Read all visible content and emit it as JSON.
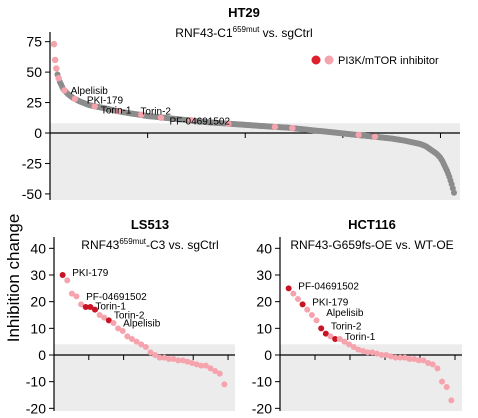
{
  "ylabel": "Inhibition change",
  "legend": {
    "label": "PI3K/mTOR inhibitor",
    "dot_colors": [
      "#e01f2c",
      "#f5a3ad"
    ]
  },
  "colors": {
    "other": "#8c8c8c",
    "pi3k_dark": "#c81424",
    "pi3k_light": "#f5a3ad",
    "bg_band": "#ececec"
  },
  "chart_data": [
    {
      "type": "scatter",
      "title": "HT29",
      "subtitle_main": "RNF43-C1",
      "subtitle_sup": "659mut",
      "subtitle_end": " vs. sgCtrl",
      "ylim": [
        -55,
        78
      ],
      "yticks": [
        75,
        50,
        25,
        0,
        -25,
        -50
      ],
      "background_band": [
        -55,
        8
      ],
      "ranked_profile": [
        [
          0,
          73
        ],
        [
          1,
          60
        ],
        [
          2,
          53
        ],
        [
          3,
          48
        ],
        [
          5,
          42
        ],
        [
          8,
          36
        ],
        [
          12,
          32
        ],
        [
          16,
          29
        ],
        [
          22,
          26
        ],
        [
          30,
          23
        ],
        [
          40,
          21
        ],
        [
          50,
          19
        ],
        [
          60,
          17
        ],
        [
          70,
          15.5
        ],
        [
          80,
          14
        ],
        [
          90,
          13
        ],
        [
          100,
          12
        ],
        [
          115,
          10.5
        ],
        [
          130,
          9
        ],
        [
          145,
          8
        ],
        [
          160,
          7
        ],
        [
          175,
          6
        ],
        [
          190,
          5
        ],
        [
          200,
          4.5
        ],
        [
          210,
          3.5
        ],
        [
          220,
          2.5
        ],
        [
          230,
          1.5
        ],
        [
          240,
          0.5
        ],
        [
          250,
          -0.5
        ],
        [
          260,
          -1.5
        ],
        [
          270,
          -2.5
        ],
        [
          280,
          -3.5
        ],
        [
          290,
          -4.5
        ],
        [
          300,
          -6
        ],
        [
          310,
          -8
        ],
        [
          315,
          -9
        ],
        [
          320,
          -11
        ],
        [
          323,
          -13
        ],
        [
          326,
          -15
        ],
        [
          329,
          -17
        ],
        [
          332,
          -20
        ],
        [
          334,
          -23
        ],
        [
          336,
          -27
        ],
        [
          338,
          -31
        ],
        [
          340,
          -36
        ],
        [
          342,
          -42
        ],
        [
          344,
          -49
        ]
      ],
      "n_points": 345,
      "pi3k_points": [
        {
          "x": 0,
          "y": 73,
          "dark": false
        },
        {
          "x": 1,
          "y": 60,
          "dark": false
        },
        {
          "x": 2,
          "y": 53,
          "dark": false
        },
        {
          "x": 4,
          "y": 45,
          "dark": false
        },
        {
          "x": 9,
          "y": 35,
          "dark": false
        },
        {
          "x": 18,
          "y": 28,
          "dark": false
        },
        {
          "x": 35,
          "y": 22,
          "dark": false
        },
        {
          "x": 55,
          "y": 18,
          "dark": false
        },
        {
          "x": 75,
          "y": 15,
          "dark": false
        },
        {
          "x": 92,
          "y": 12.5,
          "dark": false
        },
        {
          "x": 118,
          "y": 10.5,
          "dark": false
        },
        {
          "x": 150,
          "y": 7.5,
          "dark": false
        },
        {
          "x": 190,
          "y": 5,
          "dark": false
        },
        {
          "x": 205,
          "y": 4,
          "dark": false
        },
        {
          "x": 262,
          "y": -1.5,
          "dark": false
        },
        {
          "x": 276,
          "y": -3,
          "dark": false
        }
      ],
      "annotations": [
        {
          "text": "Alpelisib",
          "x": 10,
          "y": 33
        },
        {
          "text": "PKI-179",
          "x": 24,
          "y": 25
        },
        {
          "text": "Torin-1",
          "x": 36,
          "y": 17
        },
        {
          "text": "Torin-2",
          "x": 70,
          "y": 16
        },
        {
          "text": "PF-04691502",
          "x": 95,
          "y": 8
        }
      ]
    },
    {
      "type": "scatter",
      "title": "LS513",
      "subtitle_main": "RNF43",
      "subtitle_sup": "659mut",
      "subtitle_end": "-C3 vs. sgCtrl",
      "ylim": [
        -21,
        42
      ],
      "yticks": [
        40,
        30,
        20,
        10,
        0,
        -10,
        -20
      ],
      "background_band": [
        -21,
        4
      ],
      "n_points": 38,
      "points": [
        {
          "x": 1,
          "y": 30,
          "c": "dark"
        },
        {
          "x": 2,
          "y": 28,
          "c": "light"
        },
        {
          "x": 3,
          "y": 23,
          "c": "light"
        },
        {
          "x": 4,
          "y": 22,
          "c": "light"
        },
        {
          "x": 5,
          "y": 19,
          "c": "light"
        },
        {
          "x": 6,
          "y": 18,
          "c": "dark"
        },
        {
          "x": 7,
          "y": 18,
          "c": "dark"
        },
        {
          "x": 8,
          "y": 17,
          "c": "dark"
        },
        {
          "x": 9,
          "y": 15,
          "c": "light"
        },
        {
          "x": 10,
          "y": 14,
          "c": "light"
        },
        {
          "x": 11,
          "y": 13,
          "c": "dark"
        },
        {
          "x": 12,
          "y": 12,
          "c": "light"
        },
        {
          "x": 13,
          "y": 10,
          "c": "light"
        },
        {
          "x": 14,
          "y": 9,
          "c": "light"
        },
        {
          "x": 15,
          "y": 7,
          "c": "light"
        },
        {
          "x": 16,
          "y": 6,
          "c": "light"
        },
        {
          "x": 17,
          "y": 5,
          "c": "light"
        },
        {
          "x": 18,
          "y": 4,
          "c": "light"
        },
        {
          "x": 19,
          "y": 3,
          "c": "light"
        },
        {
          "x": 20,
          "y": 1,
          "c": "light"
        },
        {
          "x": 21,
          "y": 0,
          "c": "light"
        },
        {
          "x": 22,
          "y": -1,
          "c": "light"
        },
        {
          "x": 23,
          "y": -1,
          "c": "light"
        },
        {
          "x": 24,
          "y": -1.5,
          "c": "light"
        },
        {
          "x": 25,
          "y": -1.5,
          "c": "light"
        },
        {
          "x": 26,
          "y": -2,
          "c": "light"
        },
        {
          "x": 27,
          "y": -2,
          "c": "light"
        },
        {
          "x": 28,
          "y": -2.5,
          "c": "light"
        },
        {
          "x": 29,
          "y": -3,
          "c": "light"
        },
        {
          "x": 30,
          "y": -3.5,
          "c": "light"
        },
        {
          "x": 31,
          "y": -4,
          "c": "light"
        },
        {
          "x": 32,
          "y": -4,
          "c": "light"
        },
        {
          "x": 33,
          "y": -5,
          "c": "light"
        },
        {
          "x": 34,
          "y": -6,
          "c": "light"
        },
        {
          "x": 35,
          "y": -7,
          "c": "light"
        },
        {
          "x": 36,
          "y": -11,
          "c": "light"
        }
      ],
      "annotations": [
        {
          "text": "PKI-179",
          "x": 2,
          "y": 30
        },
        {
          "text": "PF-04691502",
          "x": 5,
          "y": 21
        },
        {
          "text": "Torin-1",
          "x": 7,
          "y": 17.5
        },
        {
          "text": "Torin-2",
          "x": 11,
          "y": 14
        },
        {
          "text": "Alpelisib",
          "x": 13,
          "y": 11
        }
      ]
    },
    {
      "type": "scatter",
      "title": "HCT116",
      "subtitle_main": "RNF43-G659fs-OE vs. WT-OE",
      "subtitle_sup": "",
      "subtitle_end": "",
      "ylim": [
        -21,
        42
      ],
      "yticks": [
        40,
        30,
        20,
        10,
        0,
        -10,
        -20
      ],
      "background_band": [
        -21,
        4
      ],
      "n_points": 38,
      "points": [
        {
          "x": 1,
          "y": 25,
          "c": "dark"
        },
        {
          "x": 2,
          "y": 23,
          "c": "light"
        },
        {
          "x": 3,
          "y": 21,
          "c": "light"
        },
        {
          "x": 4,
          "y": 19,
          "c": "dark"
        },
        {
          "x": 5,
          "y": 17,
          "c": "light"
        },
        {
          "x": 6,
          "y": 15,
          "c": "light"
        },
        {
          "x": 7,
          "y": 13,
          "c": "light"
        },
        {
          "x": 8,
          "y": 10,
          "c": "dark"
        },
        {
          "x": 9,
          "y": 8,
          "c": "dark"
        },
        {
          "x": 10,
          "y": 7,
          "c": "light"
        },
        {
          "x": 11,
          "y": 6,
          "c": "dark"
        },
        {
          "x": 12,
          "y": 6,
          "c": "light"
        },
        {
          "x": 13,
          "y": 5,
          "c": "light"
        },
        {
          "x": 14,
          "y": 4,
          "c": "light"
        },
        {
          "x": 15,
          "y": 3,
          "c": "light"
        },
        {
          "x": 16,
          "y": 2,
          "c": "light"
        },
        {
          "x": 17,
          "y": 1.5,
          "c": "light"
        },
        {
          "x": 18,
          "y": 1,
          "c": "light"
        },
        {
          "x": 19,
          "y": 1,
          "c": "light"
        },
        {
          "x": 20,
          "y": 0.5,
          "c": "light"
        },
        {
          "x": 21,
          "y": 0,
          "c": "light"
        },
        {
          "x": 22,
          "y": 0,
          "c": "light"
        },
        {
          "x": 23,
          "y": -0.5,
          "c": "light"
        },
        {
          "x": 24,
          "y": -1,
          "c": "light"
        },
        {
          "x": 25,
          "y": -1,
          "c": "light"
        },
        {
          "x": 26,
          "y": -1,
          "c": "light"
        },
        {
          "x": 27,
          "y": -1.5,
          "c": "light"
        },
        {
          "x": 28,
          "y": -1.5,
          "c": "light"
        },
        {
          "x": 29,
          "y": -2,
          "c": "light"
        },
        {
          "x": 30,
          "y": -2,
          "c": "light"
        },
        {
          "x": 31,
          "y": -3,
          "c": "light"
        },
        {
          "x": 32,
          "y": -3.5,
          "c": "light"
        },
        {
          "x": 33,
          "y": -5,
          "c": "light"
        },
        {
          "x": 34,
          "y": -10,
          "c": "light"
        },
        {
          "x": 35,
          "y": -12,
          "c": "light"
        },
        {
          "x": 36,
          "y": -17,
          "c": "light"
        }
      ],
      "annotations": [
        {
          "text": "PF-04691502",
          "x": 2,
          "y": 25
        },
        {
          "text": "PKI-179",
          "x": 5,
          "y": 19
        },
        {
          "text": "Alpelisib",
          "x": 8,
          "y": 15
        },
        {
          "text": "Torin-2",
          "x": 9,
          "y": 10
        },
        {
          "text": "Torin-1",
          "x": 12,
          "y": 6
        }
      ]
    }
  ]
}
